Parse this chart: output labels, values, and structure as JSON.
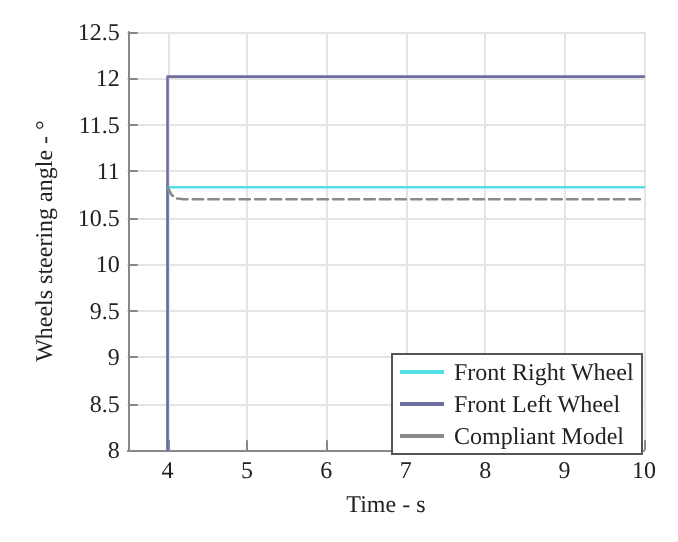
{
  "chart_data": {
    "type": "line",
    "xlabel": "Time - s",
    "ylabel": "Wheels steering angle - °",
    "xlim": [
      3.5,
      10
    ],
    "xticks": [
      4,
      5,
      6,
      7,
      8,
      9,
      10
    ],
    "ylim": [
      8,
      12.5
    ],
    "yticks": [
      8,
      8.5,
      9,
      9.5,
      10,
      10.5,
      11,
      11.5,
      12,
      12.5
    ],
    "grid": true,
    "legend": "bottom right",
    "series": [
      {
        "name": "Front Right Wheel",
        "color": "#55e0e8",
        "x": [
          4,
          4,
          10
        ],
        "values": [
          8,
          10.83,
          10.83
        ]
      },
      {
        "name": "Front Left Wheel",
        "color": "#6e6e9e",
        "x": [
          4,
          4,
          10
        ],
        "values": [
          8,
          12.02,
          12.02
        ]
      },
      {
        "name": "Compliant Model",
        "color": "#8a8a8a",
        "line_style": "dashed",
        "x": [
          4,
          4.05,
          4.1,
          4.2,
          10
        ],
        "values": [
          10.83,
          10.75,
          10.71,
          10.7,
          10.7
        ]
      }
    ]
  }
}
